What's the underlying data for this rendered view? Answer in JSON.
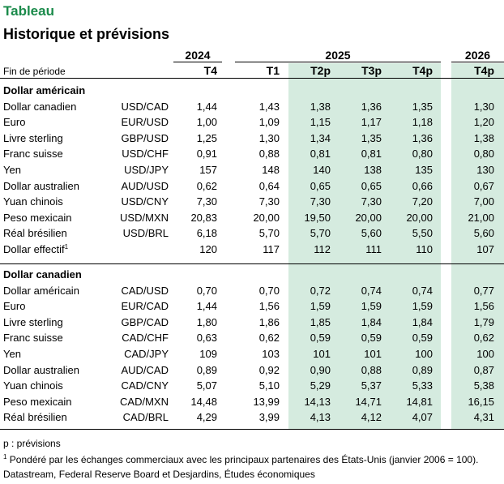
{
  "title": "Tableau",
  "subtitle": "Historique et prévisions",
  "period_label": "Fin de période",
  "years": [
    "2024",
    "2025",
    "2026"
  ],
  "quarters": [
    "T4",
    "T1",
    "T2p",
    "T3p",
    "T4p",
    "T4p"
  ],
  "sections": [
    {
      "heading": "Dollar américain",
      "rows": [
        {
          "name": "Dollar canadien",
          "pair": "USD/CAD",
          "values": [
            "1,44",
            "1,43",
            "1,38",
            "1,36",
            "1,35",
            "1,30"
          ]
        },
        {
          "name": "Euro",
          "pair": "EUR/USD",
          "values": [
            "1,00",
            "1,09",
            "1,15",
            "1,17",
            "1,18",
            "1,20"
          ]
        },
        {
          "name": "Livre sterling",
          "pair": "GBP/USD",
          "values": [
            "1,25",
            "1,30",
            "1,34",
            "1,35",
            "1,36",
            "1,38"
          ]
        },
        {
          "name": "Franc suisse",
          "pair": "USD/CHF",
          "values": [
            "0,91",
            "0,88",
            "0,81",
            "0,81",
            "0,80",
            "0,80"
          ]
        },
        {
          "name": "Yen",
          "pair": "USD/JPY",
          "values": [
            "157",
            "148",
            "140",
            "138",
            "135",
            "130"
          ]
        },
        {
          "name": "Dollar australien",
          "pair": "AUD/USD",
          "values": [
            "0,62",
            "0,64",
            "0,65",
            "0,65",
            "0,66",
            "0,67"
          ]
        },
        {
          "name": "Yuan chinois",
          "pair": "USD/CNY",
          "values": [
            "7,30",
            "7,30",
            "7,30",
            "7,30",
            "7,20",
            "7,00"
          ]
        },
        {
          "name": "Peso mexicain",
          "pair": "USD/MXN",
          "values": [
            "20,83",
            "20,00",
            "19,50",
            "20,00",
            "20,00",
            "21,00"
          ]
        },
        {
          "name": "Réal brésilien",
          "pair": "USD/BRL",
          "values": [
            "6,18",
            "5,70",
            "5,70",
            "5,60",
            "5,50",
            "5,60"
          ]
        },
        {
          "name": "Dollar effectif",
          "sup": "1",
          "pair": "",
          "values": [
            "120",
            "117",
            "112",
            "111",
            "110",
            "107"
          ]
        }
      ]
    },
    {
      "heading": "Dollar canadien",
      "rows": [
        {
          "name": "Dollar américain",
          "pair": "CAD/USD",
          "values": [
            "0,70",
            "0,70",
            "0,72",
            "0,74",
            "0,74",
            "0,77"
          ]
        },
        {
          "name": "Euro",
          "pair": "EUR/CAD",
          "values": [
            "1,44",
            "1,56",
            "1,59",
            "1,59",
            "1,59",
            "1,56"
          ]
        },
        {
          "name": "Livre sterling",
          "pair": "GBP/CAD",
          "values": [
            "1,80",
            "1,86",
            "1,85",
            "1,84",
            "1,84",
            "1,79"
          ]
        },
        {
          "name": "Franc suisse",
          "pair": "CAD/CHF",
          "values": [
            "0,63",
            "0,62",
            "0,59",
            "0,59",
            "0,59",
            "0,62"
          ]
        },
        {
          "name": "Yen",
          "pair": "CAD/JPY",
          "values": [
            "109",
            "103",
            "101",
            "101",
            "100",
            "100"
          ]
        },
        {
          "name": "Dollar australien",
          "pair": "AUD/CAD",
          "values": [
            "0,89",
            "0,92",
            "0,90",
            "0,88",
            "0,89",
            "0,87"
          ]
        },
        {
          "name": "Yuan chinois",
          "pair": "CAD/CNY",
          "values": [
            "5,07",
            "5,10",
            "5,29",
            "5,37",
            "5,33",
            "5,38"
          ]
        },
        {
          "name": "Peso mexicain",
          "pair": "CAD/MXN",
          "values": [
            "14,48",
            "13,99",
            "14,13",
            "14,71",
            "14,81",
            "16,15"
          ]
        },
        {
          "name": "Réal brésilien",
          "pair": "CAD/BRL",
          "values": [
            "4,29",
            "3,99",
            "4,13",
            "4,12",
            "4,07",
            "4,31"
          ]
        }
      ]
    }
  ],
  "notes": {
    "forecast": "p : prévisions",
    "footnote_marker": "1",
    "footnote": "Pondéré par les échanges commerciaux avec les principaux partenaires des États-Unis (janvier 2006 = 100).",
    "source": "Datastream, Federal Reserve Board et Desjardins, Études économiques"
  }
}
